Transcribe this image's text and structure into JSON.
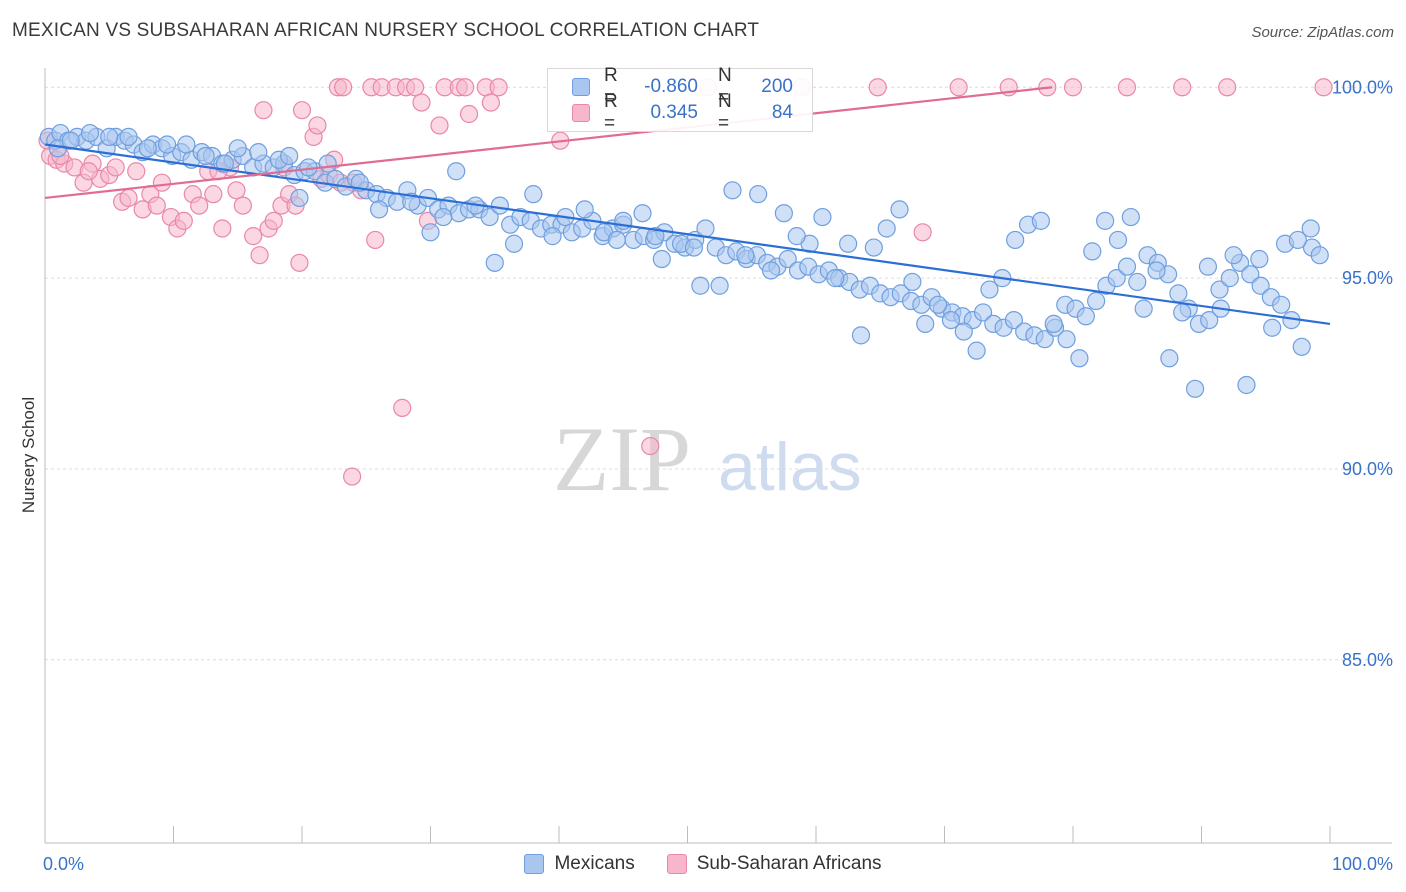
{
  "title": "MEXICAN VS SUBSAHARAN AFRICAN NURSERY SCHOOL CORRELATION CHART",
  "source": "Source: ZipAtlas.com",
  "watermark": {
    "zip": "ZIP",
    "atlas": "atlas"
  },
  "legend": {
    "rows": [
      {
        "r_label": "R =",
        "r_value": "-0.860",
        "n_label": "N =",
        "n_value": "200",
        "color": "#a9c6ef",
        "border": "#6f9fe0"
      },
      {
        "r_label": "R =",
        "r_value": "0.345",
        "n_label": "N =",
        "n_value": "84",
        "color": "#f6b6cb",
        "border": "#ea87a8"
      }
    ]
  },
  "bottom_legend": {
    "mexicans": "Mexicans",
    "subsaharan": "Sub-Saharan Africans"
  },
  "chart_data": {
    "type": "scatter",
    "title": "MEXICAN VS SUBSAHARAN AFRICAN NURSERY SCHOOL CORRELATION CHART",
    "xlabel": "",
    "ylabel": "Nursery School",
    "xlim": [
      0,
      100
    ],
    "ylim": [
      80.2,
      100.4
    ],
    "x_tick_labels": [
      "0.0%",
      "100.0%"
    ],
    "y_ticks": [
      85.0,
      90.0,
      95.0,
      100.0
    ],
    "y_tick_labels": [
      "85.0%",
      "90.0%",
      "95.0%",
      "100.0%"
    ],
    "grid": true,
    "series": [
      {
        "name": "Mexicans",
        "color": "#6f9fe0",
        "fill": "#a9c6ef",
        "trend": {
          "x": [
            0,
            100
          ],
          "y": [
            98.5,
            93.8
          ],
          "color": "#2b6fd6"
        },
        "points": [
          [
            0.3,
            98.7
          ],
          [
            0.8,
            98.6
          ],
          [
            1.2,
            98.8
          ],
          [
            1.8,
            98.6
          ],
          [
            2.5,
            98.7
          ],
          [
            3.2,
            98.6
          ],
          [
            4.0,
            98.7
          ],
          [
            4.8,
            98.4
          ],
          [
            5.5,
            98.7
          ],
          [
            6.2,
            98.6
          ],
          [
            6.9,
            98.5
          ],
          [
            7.6,
            98.3
          ],
          [
            8.4,
            98.5
          ],
          [
            9.1,
            98.4
          ],
          [
            9.9,
            98.2
          ],
          [
            10.6,
            98.3
          ],
          [
            11.4,
            98.1
          ],
          [
            12.2,
            98.3
          ],
          [
            13.0,
            98.2
          ],
          [
            13.8,
            98.0
          ],
          [
            14.6,
            98.1
          ],
          [
            15.4,
            98.2
          ],
          [
            16.2,
            97.9
          ],
          [
            17.0,
            98.0
          ],
          [
            17.8,
            97.9
          ],
          [
            18.6,
            98.0
          ],
          [
            19.4,
            97.7
          ],
          [
            20.2,
            97.8
          ],
          [
            21.0,
            97.8
          ],
          [
            21.8,
            97.5
          ],
          [
            22.6,
            97.6
          ],
          [
            23.4,
            97.4
          ],
          [
            24.2,
            97.6
          ],
          [
            25.0,
            97.3
          ],
          [
            25.8,
            97.2
          ],
          [
            26.6,
            97.1
          ],
          [
            27.4,
            97.0
          ],
          [
            28.2,
            97.3
          ],
          [
            29.0,
            96.9
          ],
          [
            29.8,
            97.1
          ],
          [
            30.6,
            96.8
          ],
          [
            31.4,
            96.9
          ],
          [
            32.2,
            96.7
          ],
          [
            33.0,
            96.8
          ],
          [
            33.8,
            96.8
          ],
          [
            34.6,
            96.6
          ],
          [
            35.4,
            96.9
          ],
          [
            36.2,
            96.4
          ],
          [
            37.0,
            96.6
          ],
          [
            37.8,
            96.5
          ],
          [
            38.6,
            96.3
          ],
          [
            39.4,
            96.4
          ],
          [
            40.2,
            96.4
          ],
          [
            41.0,
            96.2
          ],
          [
            41.8,
            96.3
          ],
          [
            42.6,
            96.5
          ],
          [
            43.4,
            96.1
          ],
          [
            44.2,
            96.3
          ],
          [
            45.0,
            96.4
          ],
          [
            45.8,
            96.0
          ],
          [
            46.6,
            96.1
          ],
          [
            47.4,
            96.0
          ],
          [
            48.2,
            96.2
          ],
          [
            49.0,
            95.9
          ],
          [
            49.8,
            95.8
          ],
          [
            50.6,
            96.0
          ],
          [
            51.4,
            96.3
          ],
          [
            52.2,
            95.8
          ],
          [
            53.0,
            95.6
          ],
          [
            53.8,
            95.7
          ],
          [
            54.6,
            95.5
          ],
          [
            55.4,
            95.6
          ],
          [
            56.2,
            95.4
          ],
          [
            57.0,
            95.3
          ],
          [
            57.8,
            95.5
          ],
          [
            58.6,
            95.2
          ],
          [
            59.4,
            95.3
          ],
          [
            60.2,
            95.1
          ],
          [
            61.0,
            95.2
          ],
          [
            61.8,
            95.0
          ],
          [
            62.6,
            94.9
          ],
          [
            63.4,
            94.7
          ],
          [
            64.2,
            94.8
          ],
          [
            65.0,
            94.6
          ],
          [
            65.8,
            94.5
          ],
          [
            66.6,
            94.6
          ],
          [
            67.4,
            94.4
          ],
          [
            68.2,
            94.3
          ],
          [
            69.0,
            94.5
          ],
          [
            69.8,
            94.2
          ],
          [
            70.6,
            94.1
          ],
          [
            71.4,
            94.0
          ],
          [
            72.2,
            93.9
          ],
          [
            73.0,
            94.1
          ],
          [
            73.8,
            93.8
          ],
          [
            74.6,
            93.7
          ],
          [
            75.4,
            93.9
          ],
          [
            76.2,
            93.6
          ],
          [
            77.0,
            93.5
          ],
          [
            77.8,
            93.4
          ],
          [
            78.6,
            93.7
          ],
          [
            79.4,
            94.3
          ],
          [
            80.2,
            94.2
          ],
          [
            81.0,
            94.0
          ],
          [
            81.8,
            94.4
          ],
          [
            82.6,
            94.8
          ],
          [
            83.4,
            95.0
          ],
          [
            84.2,
            95.3
          ],
          [
            85.0,
            94.9
          ],
          [
            85.8,
            95.6
          ],
          [
            86.6,
            95.4
          ],
          [
            87.4,
            95.1
          ],
          [
            88.2,
            94.6
          ],
          [
            89.0,
            94.2
          ],
          [
            89.8,
            93.8
          ],
          [
            90.6,
            93.9
          ],
          [
            91.4,
            94.7
          ],
          [
            92.2,
            95.0
          ],
          [
            93.0,
            95.4
          ],
          [
            93.8,
            95.1
          ],
          [
            94.6,
            94.8
          ],
          [
            95.4,
            94.5
          ],
          [
            96.2,
            94.3
          ],
          [
            97.0,
            93.9
          ],
          [
            97.8,
            93.2
          ],
          [
            98.6,
            95.8
          ],
          [
            99.2,
            95.6
          ],
          [
            32.0,
            97.8
          ],
          [
            35.0,
            95.4
          ],
          [
            38.0,
            97.2
          ],
          [
            42.0,
            96.8
          ],
          [
            45.0,
            96.5
          ],
          [
            48.0,
            95.5
          ],
          [
            51.0,
            94.8
          ],
          [
            53.5,
            97.3
          ],
          [
            55.5,
            97.2
          ],
          [
            57.5,
            96.7
          ],
          [
            59.5,
            95.9
          ],
          [
            61.5,
            95.0
          ],
          [
            63.5,
            93.5
          ],
          [
            65.5,
            96.3
          ],
          [
            66.5,
            96.8
          ],
          [
            67.5,
            94.9
          ],
          [
            68.5,
            93.8
          ],
          [
            69.5,
            94.3
          ],
          [
            70.5,
            93.9
          ],
          [
            71.5,
            93.6
          ],
          [
            72.5,
            93.1
          ],
          [
            73.5,
            94.7
          ],
          [
            74.5,
            95.0
          ],
          [
            75.5,
            96.0
          ],
          [
            76.5,
            96.4
          ],
          [
            77.5,
            96.5
          ],
          [
            78.5,
            93.8
          ],
          [
            79.5,
            93.4
          ],
          [
            80.5,
            92.9
          ],
          [
            81.5,
            95.7
          ],
          [
            82.5,
            96.5
          ],
          [
            83.5,
            96.0
          ],
          [
            84.5,
            96.6
          ],
          [
            85.5,
            94.2
          ],
          [
            86.5,
            95.2
          ],
          [
            87.5,
            92.9
          ],
          [
            88.5,
            94.1
          ],
          [
            89.5,
            92.1
          ],
          [
            90.5,
            95.3
          ],
          [
            91.5,
            94.2
          ],
          [
            92.5,
            95.6
          ],
          [
            93.5,
            92.2
          ],
          [
            94.5,
            95.5
          ],
          [
            95.5,
            93.7
          ],
          [
            96.5,
            95.9
          ],
          [
            97.5,
            96.0
          ],
          [
            98.5,
            96.3
          ],
          [
            19.8,
            97.1
          ],
          [
            20.5,
            97.9
          ],
          [
            22.0,
            98.0
          ],
          [
            24.5,
            97.5
          ],
          [
            26.0,
            96.8
          ],
          [
            28.5,
            97.0
          ],
          [
            30.0,
            96.2
          ],
          [
            31.0,
            96.6
          ],
          [
            33.5,
            96.9
          ],
          [
            36.5,
            95.9
          ],
          [
            39.5,
            96.1
          ],
          [
            40.5,
            96.6
          ],
          [
            43.5,
            96.2
          ],
          [
            44.5,
            96.0
          ],
          [
            46.5,
            96.7
          ],
          [
            47.5,
            96.1
          ],
          [
            49.5,
            95.9
          ],
          [
            50.5,
            95.8
          ],
          [
            52.5,
            94.8
          ],
          [
            54.5,
            95.6
          ],
          [
            56.5,
            95.2
          ],
          [
            58.5,
            96.1
          ],
          [
            60.5,
            96.6
          ],
          [
            62.5,
            95.9
          ],
          [
            64.5,
            95.8
          ],
          [
            1.0,
            98.4
          ],
          [
            2.0,
            98.6
          ],
          [
            3.5,
            98.8
          ],
          [
            5.0,
            98.7
          ],
          [
            6.5,
            98.7
          ],
          [
            8.0,
            98.4
          ],
          [
            9.5,
            98.5
          ],
          [
            11.0,
            98.5
          ],
          [
            12.5,
            98.2
          ],
          [
            14.0,
            98.0
          ],
          [
            15.0,
            98.4
          ],
          [
            16.6,
            98.3
          ],
          [
            18.2,
            98.1
          ],
          [
            19.0,
            98.2
          ]
        ]
      },
      {
        "name": "Sub-Saharan Africans",
        "color": "#ea87a8",
        "fill": "#f6b6cb",
        "trend": {
          "x": [
            0,
            100
          ],
          "y": [
            97.1,
            100.8
          ],
          "color": "#e06c93"
        },
        "points": [
          [
            0.4,
            98.2
          ],
          [
            0.9,
            98.1
          ],
          [
            1.5,
            98.0
          ],
          [
            2.3,
            97.9
          ],
          [
            3.0,
            97.5
          ],
          [
            3.7,
            98.0
          ],
          [
            4.3,
            97.6
          ],
          [
            5.0,
            97.7
          ],
          [
            5.5,
            97.9
          ],
          [
            6.0,
            97.0
          ],
          [
            6.5,
            97.1
          ],
          [
            7.1,
            97.8
          ],
          [
            7.6,
            96.8
          ],
          [
            8.2,
            97.2
          ],
          [
            8.7,
            96.9
          ],
          [
            9.1,
            97.5
          ],
          [
            9.8,
            96.6
          ],
          [
            10.3,
            96.3
          ],
          [
            10.8,
            96.5
          ],
          [
            11.5,
            97.2
          ],
          [
            12.0,
            96.9
          ],
          [
            12.7,
            97.8
          ],
          [
            13.1,
            97.2
          ],
          [
            13.8,
            96.3
          ],
          [
            14.4,
            97.9
          ],
          [
            14.9,
            97.3
          ],
          [
            15.4,
            96.9
          ],
          [
            16.2,
            96.1
          ],
          [
            16.7,
            95.6
          ],
          [
            17.0,
            99.4
          ],
          [
            17.4,
            96.3
          ],
          [
            17.8,
            96.5
          ],
          [
            18.4,
            96.9
          ],
          [
            19.0,
            97.2
          ],
          [
            19.5,
            96.9
          ],
          [
            19.8,
            95.4
          ],
          [
            20.0,
            99.4
          ],
          [
            20.9,
            98.7
          ],
          [
            21.2,
            99.0
          ],
          [
            21.5,
            97.6
          ],
          [
            22.1,
            97.7
          ],
          [
            22.5,
            98.1
          ],
          [
            23.0,
            97.5
          ],
          [
            22.8,
            100.0
          ],
          [
            23.2,
            100.0
          ],
          [
            23.9,
            89.8
          ],
          [
            24.6,
            97.3
          ],
          [
            25.4,
            100.0
          ],
          [
            25.7,
            96.0
          ],
          [
            26.2,
            100.0
          ],
          [
            27.3,
            100.0
          ],
          [
            27.8,
            91.6
          ],
          [
            28.1,
            100.0
          ],
          [
            28.8,
            100.0
          ],
          [
            29.3,
            99.6
          ],
          [
            29.8,
            96.5
          ],
          [
            30.7,
            99.0
          ],
          [
            31.1,
            100.0
          ],
          [
            32.2,
            100.0
          ],
          [
            32.7,
            100.0
          ],
          [
            33.0,
            99.3
          ],
          [
            34.3,
            100.0
          ],
          [
            34.7,
            99.6
          ],
          [
            35.3,
            100.0
          ],
          [
            40.1,
            98.6
          ],
          [
            47.1,
            90.6
          ],
          [
            51.6,
            100.0
          ],
          [
            58.9,
            100.0
          ],
          [
            64.8,
            100.0
          ],
          [
            68.3,
            96.2
          ],
          [
            71.1,
            100.0
          ],
          [
            75.0,
            100.0
          ],
          [
            78.0,
            100.0
          ],
          [
            80.0,
            100.0
          ],
          [
            84.2,
            100.0
          ],
          [
            88.5,
            100.0
          ],
          [
            92.0,
            100.0
          ],
          [
            99.5,
            100.0
          ],
          [
            0.2,
            98.6
          ],
          [
            1.2,
            98.2
          ],
          [
            3.4,
            97.8
          ],
          [
            13.5,
            97.8
          ],
          [
            18.6,
            97.9
          ],
          [
            24.0,
            97.5
          ]
        ]
      }
    ]
  }
}
